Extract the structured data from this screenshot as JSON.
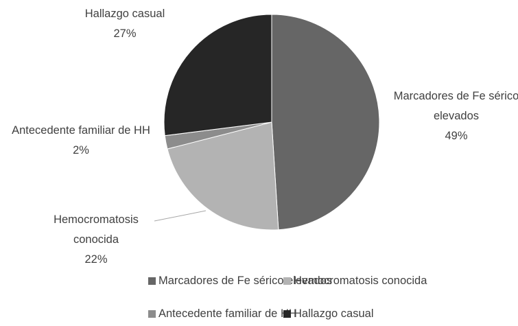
{
  "chart_data": {
    "type": "pie",
    "categories": [
      "Marcadores de Fe sérico elevados",
      "Hemocromatosis conocida",
      "Antecedente familiar de HH",
      "Hallazgo casual"
    ],
    "values": [
      49,
      22,
      2,
      27
    ],
    "value_labels": [
      "49%",
      "22%",
      "2%",
      "27%"
    ],
    "colors": [
      "#666666",
      "#b3b3b3",
      "#8c8c8c",
      "#262626"
    ],
    "legend": "bottom"
  }
}
